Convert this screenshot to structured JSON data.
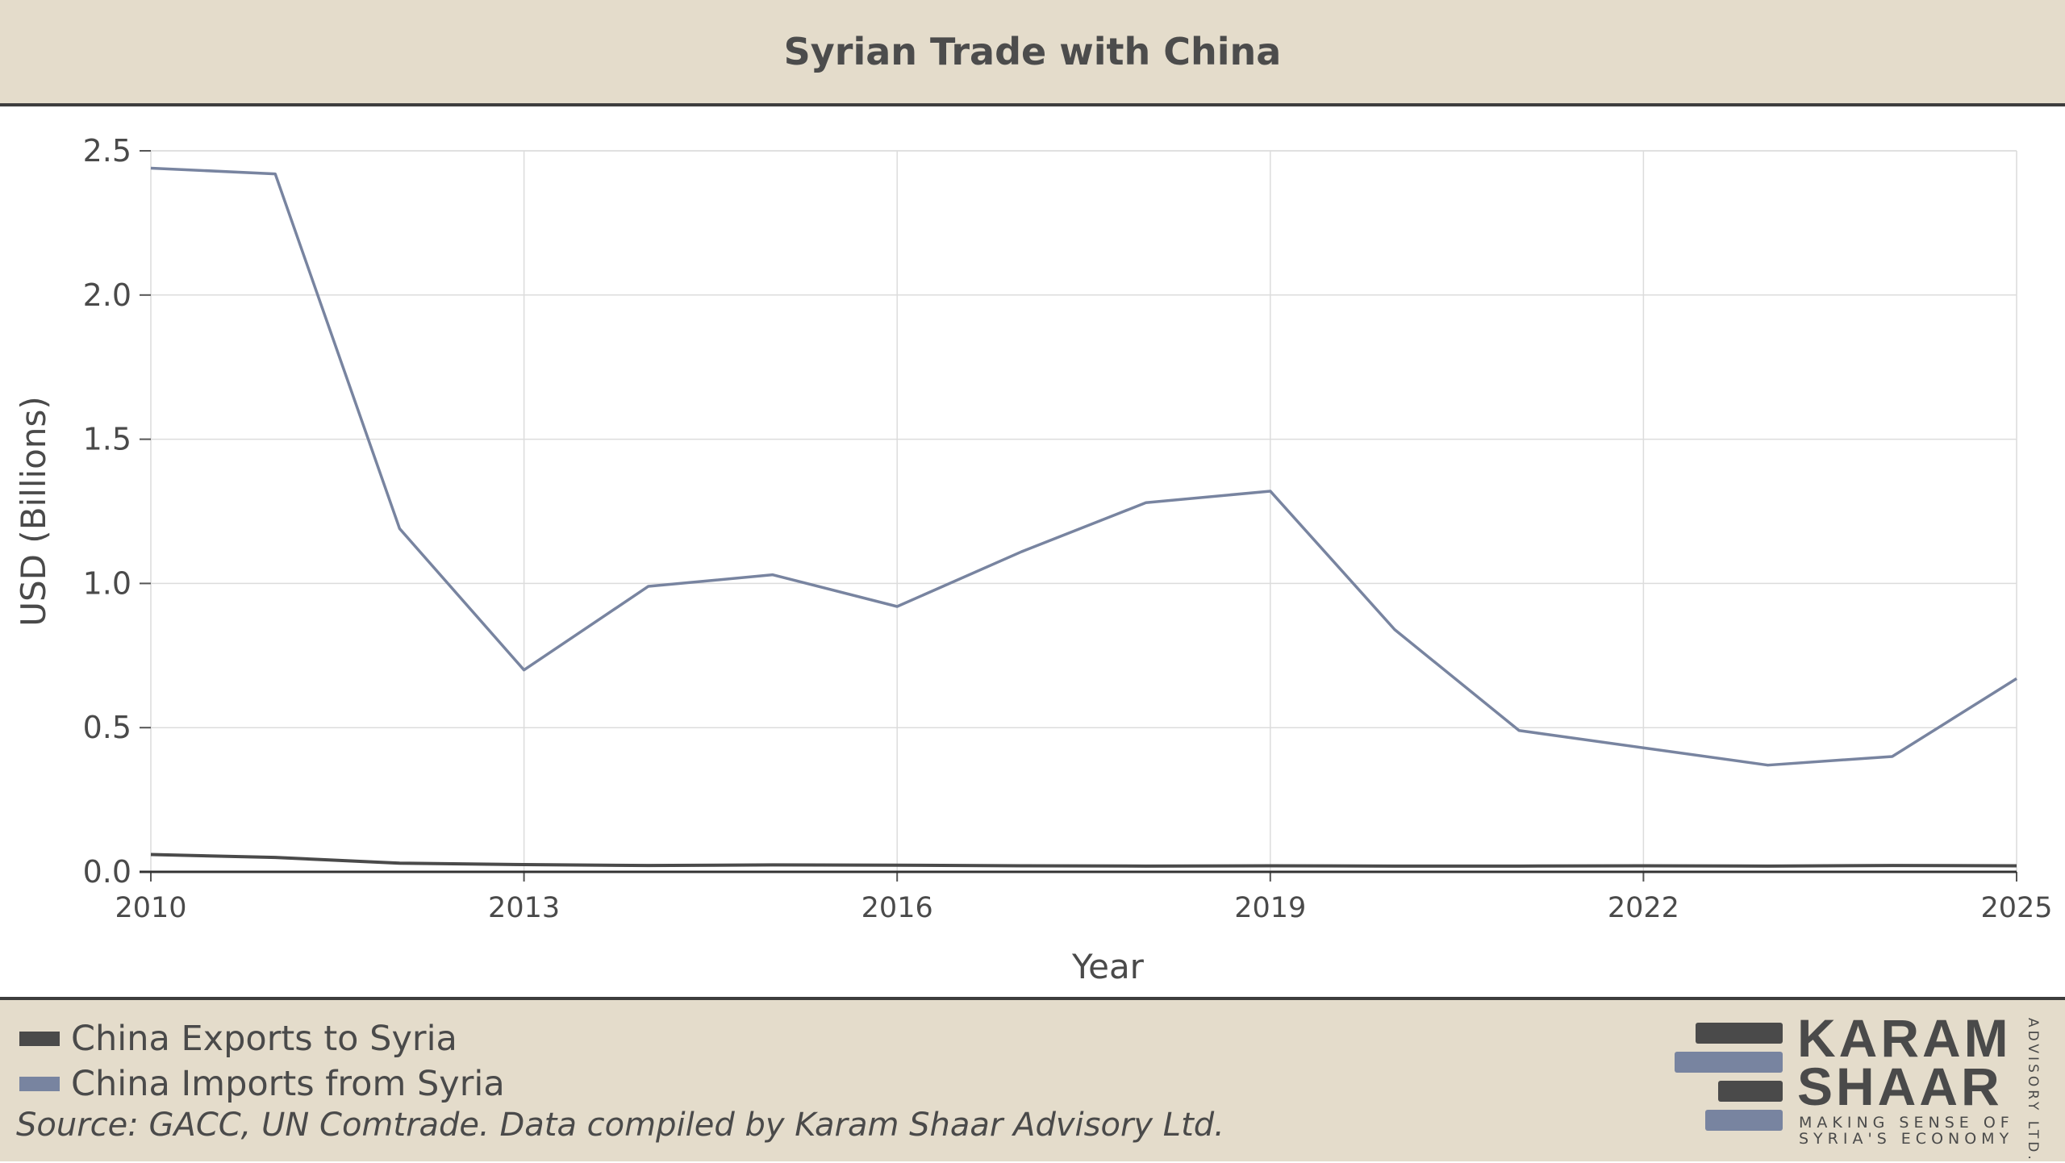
{
  "header": {
    "title": "Syrian Trade with China"
  },
  "chart_data": {
    "type": "line",
    "title": "Syrian Trade with China",
    "xlabel": "Year",
    "ylabel": "USD (Billions)",
    "xlim": [
      2010,
      2025
    ],
    "ylim": [
      0,
      2.5
    ],
    "x_ticks": [
      2010,
      2013,
      2016,
      2019,
      2022,
      2025
    ],
    "y_ticks": [
      0.0,
      0.5,
      1.0,
      1.5,
      2.0,
      2.5
    ],
    "y_tick_labels": [
      "0.0",
      "0.5",
      "1.0",
      "1.5",
      "2.0",
      "2.5"
    ],
    "grid": true,
    "legend_position": "bottom-left",
    "x": [
      2010,
      2011,
      2012,
      2013,
      2014,
      2015,
      2016,
      2017,
      2018,
      2019,
      2020,
      2021,
      2022,
      2023,
      2024,
      2025
    ],
    "series": [
      {
        "name": "China Exports to Syria",
        "color": "#4a4a4a",
        "values": [
          0.06,
          0.05,
          0.03,
          0.025,
          0.022,
          0.024,
          0.023,
          0.021,
          0.02,
          0.021,
          0.02,
          0.02,
          0.021,
          0.02,
          0.022,
          0.021
        ]
      },
      {
        "name": "China Imports from Syria",
        "color": "#7884a0",
        "values": [
          2.44,
          2.42,
          1.19,
          0.7,
          0.99,
          1.03,
          0.92,
          1.11,
          1.28,
          1.32,
          0.84,
          0.49,
          0.43,
          0.37,
          0.4,
          0.67
        ]
      }
    ]
  },
  "legend": {
    "items": [
      {
        "label": "China Exports to Syria",
        "color": "#4a4a4a"
      },
      {
        "label": "China Imports from Syria",
        "color": "#7884a0"
      }
    ]
  },
  "footer": {
    "source": "Source: GACC, UN Comtrade. Data compiled by Karam Shaar Advisory Ltd."
  },
  "logo": {
    "line1": "KARAM",
    "line2": "SHAAR",
    "tagline1": "MAKING SENSE OF",
    "tagline2": "SYRIA'S ECONOMY",
    "vertical": "ADVISORY LTD.",
    "dark_color": "#4a4a4a",
    "accent_color": "#7884a0"
  }
}
